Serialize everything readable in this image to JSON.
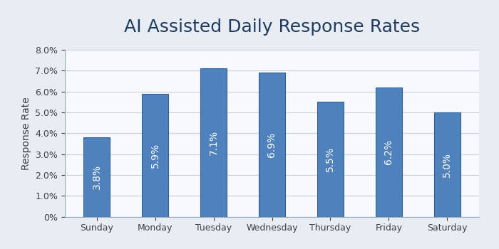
{
  "chart_data": {
    "type": "bar",
    "title": "AI Assisted Daily Response Rates",
    "y_label": "Response Rate",
    "categories": [
      "Sunday",
      "Monday",
      "Tuesday",
      "Wednesday",
      "Thursday",
      "Friday",
      "Saturday"
    ],
    "values": [
      3.8,
      5.9,
      7.1,
      6.9,
      5.5,
      6.2,
      5.0
    ],
    "value_labels": [
      "3.8%",
      "5.9%",
      "7.1%",
      "6.9%",
      "5.5%",
      "6.2%",
      "5.0%"
    ],
    "data_labels": true,
    "color": "#4f81bd",
    "ylim": [
      0,
      8
    ],
    "yticks": [
      {
        "value": 0,
        "label": "0%"
      },
      {
        "value": 1,
        "label": "1.0%"
      },
      {
        "value": 2,
        "label": "2.0%"
      },
      {
        "value": 3,
        "label": "3.0%"
      },
      {
        "value": 4,
        "label": "4.0%"
      },
      {
        "value": 5,
        "label": "5.0%"
      },
      {
        "value": 6,
        "label": "6.0%"
      },
      {
        "value": 7,
        "label": "7.0%"
      },
      {
        "value": 8,
        "label": "8.0%"
      }
    ],
    "grid": true
  }
}
